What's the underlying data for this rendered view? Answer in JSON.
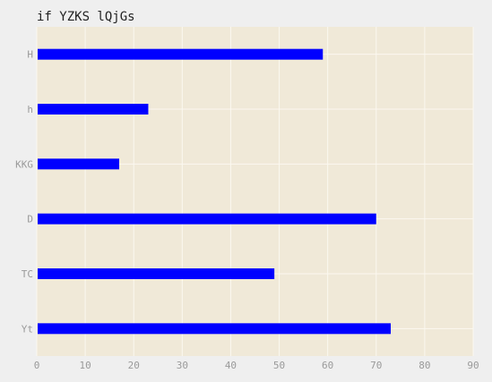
{
  "chart_data": {
    "type": "bar",
    "orientation": "horizontal",
    "title": "if YZKS lQjGs",
    "xlabel": "",
    "ylabel": "",
    "categories": [
      "Yt",
      "TC",
      "D",
      "KKG",
      "h",
      "H"
    ],
    "values": [
      73,
      49,
      70,
      17,
      23,
      59
    ],
    "xlim": [
      0,
      90
    ],
    "xticks": [
      "0",
      "10",
      "20",
      "30",
      "40",
      "50",
      "60",
      "70",
      "80",
      "90"
    ],
    "grid": true,
    "legend": "none",
    "colors": {
      "bar": "#0000ff",
      "plot_background": "#f0e9d8",
      "figure_background": "#efefef",
      "grid": "#fbf8f0",
      "tick_label": "#9a9a9a",
      "title": "#222222"
    }
  }
}
